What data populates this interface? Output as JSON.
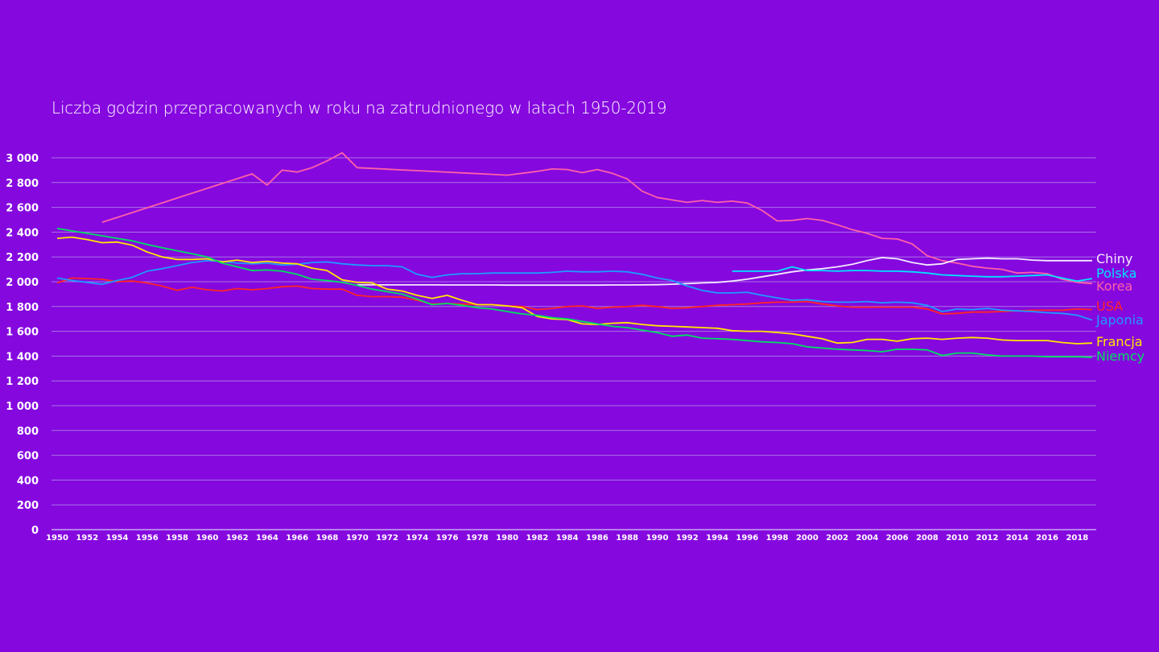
{
  "chart_data": {
    "type": "line",
    "title": "Liczba godzin przepracowanych w roku na zatrudnionego w latach 1950-2019",
    "xlabel": "",
    "ylabel": "",
    "xlim": [
      1950,
      2019
    ],
    "ylim": [
      0,
      3000
    ],
    "grid": true,
    "legend_placement": "right (labels at line ends)",
    "y_ticks": [
      {
        "value": 0,
        "label": "0"
      },
      {
        "value": 200,
        "label": "200"
      },
      {
        "value": 400,
        "label": "400"
      },
      {
        "value": 600,
        "label": "600"
      },
      {
        "value": 800,
        "label": "800"
      },
      {
        "value": 1000,
        "label": "1 000"
      },
      {
        "value": 1200,
        "label": "1 200"
      },
      {
        "value": 1400,
        "label": "1 400"
      },
      {
        "value": 1600,
        "label": "1 600"
      },
      {
        "value": 1800,
        "label": "1 800"
      },
      {
        "value": 2000,
        "label": "2 000"
      },
      {
        "value": 2200,
        "label": "2 200"
      },
      {
        "value": 2400,
        "label": "2 400"
      },
      {
        "value": 2600,
        "label": "2 600"
      },
      {
        "value": 2800,
        "label": "2 800"
      },
      {
        "value": 3000,
        "label": "3 000"
      }
    ],
    "x_ticks": [
      "1950",
      "1952",
      "1954",
      "1956",
      "1958",
      "1960",
      "1962",
      "1964",
      "1966",
      "1968",
      "1970",
      "1972",
      "1974",
      "1976",
      "1978",
      "1980",
      "1982",
      "1984",
      "1986",
      "1988",
      "1990",
      "1992",
      "1994",
      "1996",
      "1998",
      "2000",
      "2002",
      "2004",
      "2006",
      "2008",
      "2010",
      "2012",
      "2014",
      "2016",
      "2018"
    ],
    "x_start": 1950,
    "series": [
      {
        "name": "Korea",
        "color": "#ff5fa8",
        "values": [
          null,
          null,
          null,
          2480,
          2519,
          2558,
          2597,
          2636,
          2675,
          2714,
          2753,
          2792,
          2831,
          2870,
          2780,
          2900,
          2885,
          2920,
          2975,
          3040,
          2920,
          2914,
          2908,
          2902,
          2896,
          2890,
          2884,
          2878,
          2872,
          2866,
          2860,
          2875,
          2890,
          2910,
          2905,
          2880,
          2905,
          2875,
          2830,
          2730,
          2680,
          2660,
          2640,
          2655,
          2640,
          2650,
          2635,
          2575,
          2490,
          2495,
          2510,
          2495,
          2460,
          2420,
          2390,
          2350,
          2345,
          2305,
          2210,
          2170,
          2150,
          2125,
          2110,
          2100,
          2070,
          2075,
          2065,
          2020,
          1995,
          1985
        ]
      },
      {
        "name": "Chiny",
        "color": "#f4eaff",
        "values": [
          null,
          null,
          null,
          null,
          null,
          null,
          null,
          null,
          null,
          null,
          null,
          null,
          null,
          null,
          null,
          null,
          null,
          null,
          null,
          null,
          1975,
          1975,
          1975,
          1975,
          1975,
          1975,
          1974,
          1974,
          1974,
          1974,
          1973,
          1973,
          1973,
          1973,
          1973,
          1973,
          1973,
          1974,
          1974,
          1975,
          1976,
          1980,
          1985,
          1990,
          1995,
          2005,
          2020,
          2040,
          2060,
          2080,
          2095,
          2105,
          2120,
          2140,
          2170,
          2195,
          2185,
          2155,
          2135,
          2145,
          2180,
          2185,
          2190,
          2185,
          2185,
          2175,
          2170,
          2170,
          2170,
          2170
        ]
      },
      {
        "name": "Polska",
        "color": "#00e5ff",
        "values": [
          null,
          null,
          null,
          null,
          null,
          null,
          null,
          null,
          null,
          null,
          null,
          null,
          null,
          null,
          null,
          null,
          null,
          null,
          null,
          null,
          null,
          null,
          null,
          null,
          null,
          null,
          null,
          null,
          null,
          null,
          null,
          null,
          null,
          null,
          null,
          null,
          null,
          null,
          null,
          null,
          null,
          null,
          null,
          null,
          null,
          2085,
          2085,
          2085,
          2085,
          2120,
          2090,
          2090,
          2085,
          2090,
          2090,
          2085,
          2085,
          2080,
          2070,
          2055,
          2050,
          2045,
          2040,
          2040,
          2045,
          2050,
          2055,
          2030,
          2005,
          2025
        ]
      },
      {
        "name": "USA",
        "color": "#ff2424",
        "values": [
          1990,
          2030,
          2025,
          2020,
          2000,
          2005,
          1990,
          1965,
          1930,
          1955,
          1935,
          1925,
          1945,
          1935,
          1945,
          1960,
          1965,
          1945,
          1940,
          1940,
          1890,
          1880,
          1880,
          1875,
          1850,
          1820,
          1825,
          1820,
          1815,
          1815,
          1805,
          1800,
          1775,
          1785,
          1800,
          1805,
          1785,
          1795,
          1800,
          1810,
          1800,
          1785,
          1790,
          1800,
          1810,
          1815,
          1820,
          1830,
          1835,
          1835,
          1840,
          1820,
          1805,
          1795,
          1795,
          1795,
          1795,
          1795,
          1780,
          1740,
          1745,
          1755,
          1755,
          1760,
          1765,
          1770,
          1770,
          1770,
          1780,
          1775
        ]
      },
      {
        "name": "Japonia",
        "color": "#1e9bff",
        "values": [
          2030,
          2010,
          1995,
          1980,
          2010,
          2035,
          2085,
          2105,
          2130,
          2155,
          2170,
          2165,
          2150,
          2145,
          2150,
          2135,
          2140,
          2155,
          2160,
          2145,
          2135,
          2130,
          2130,
          2120,
          2060,
          2035,
          2055,
          2065,
          2065,
          2070,
          2070,
          2070,
          2070,
          2075,
          2085,
          2080,
          2080,
          2085,
          2080,
          2060,
          2030,
          2010,
          1965,
          1930,
          1910,
          1910,
          1915,
          1890,
          1870,
          1850,
          1855,
          1840,
          1835,
          1835,
          1840,
          1830,
          1835,
          1830,
          1810,
          1760,
          1780,
          1775,
          1785,
          1770,
          1765,
          1760,
          1750,
          1745,
          1730,
          1690
        ]
      },
      {
        "name": "Francja",
        "color": "#ffe600",
        "values": [
          2350,
          2360,
          2340,
          2315,
          2320,
          2295,
          2240,
          2200,
          2180,
          2180,
          2185,
          2160,
          2175,
          2155,
          2165,
          2150,
          2145,
          2110,
          2090,
          2015,
          1995,
          1990,
          1940,
          1925,
          1890,
          1865,
          1890,
          1850,
          1815,
          1815,
          1805,
          1790,
          1720,
          1700,
          1695,
          1660,
          1655,
          1665,
          1670,
          1655,
          1645,
          1640,
          1635,
          1630,
          1625,
          1605,
          1600,
          1600,
          1590,
          1580,
          1560,
          1540,
          1505,
          1510,
          1535,
          1535,
          1520,
          1540,
          1545,
          1535,
          1545,
          1550,
          1545,
          1530,
          1525,
          1525,
          1525,
          1510,
          1500,
          1505
        ]
      },
      {
        "name": "Niemcy",
        "color": "#00e060",
        "values": [
          2430,
          2410,
          2390,
          2370,
          2350,
          2330,
          2300,
          2275,
          2250,
          2225,
          2200,
          2150,
          2120,
          2090,
          2095,
          2085,
          2060,
          2020,
          2010,
          1995,
          1970,
          1940,
          1920,
          1900,
          1860,
          1815,
          1825,
          1810,
          1790,
          1780,
          1760,
          1740,
          1730,
          1710,
          1700,
          1680,
          1660,
          1640,
          1630,
          1610,
          1590,
          1560,
          1570,
          1545,
          1540,
          1535,
          1525,
          1515,
          1510,
          1500,
          1475,
          1465,
          1455,
          1450,
          1445,
          1435,
          1455,
          1455,
          1450,
          1405,
          1425,
          1425,
          1410,
          1400,
          1400,
          1400,
          1395,
          1395,
          1395,
          1390
        ]
      }
    ]
  }
}
